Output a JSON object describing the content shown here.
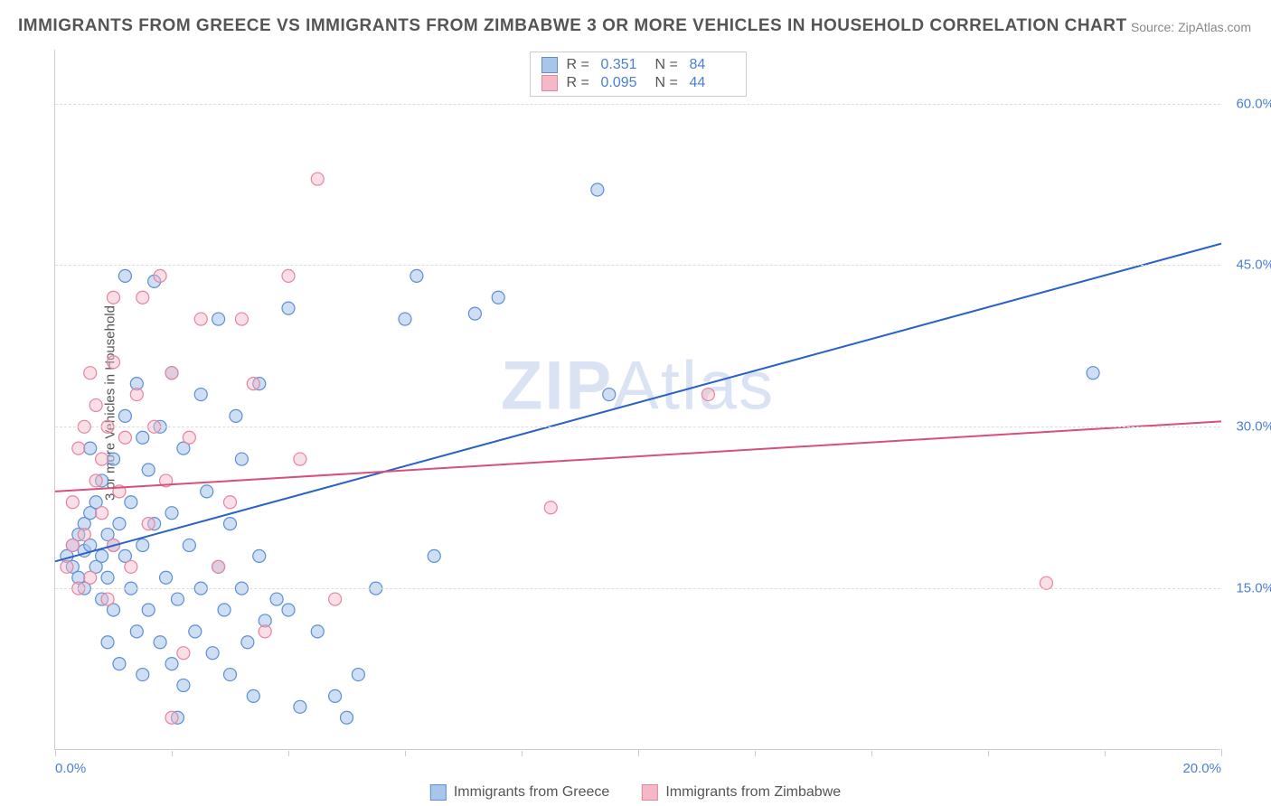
{
  "title": "IMMIGRANTS FROM GREECE VS IMMIGRANTS FROM ZIMBABWE 3 OR MORE VEHICLES IN HOUSEHOLD CORRELATION CHART",
  "source": "Source: ZipAtlas.com",
  "y_axis_label": "3 or more Vehicles in Household",
  "watermark": "ZIPAtlas",
  "chart": {
    "type": "scatter",
    "xlim": [
      0,
      20
    ],
    "ylim": [
      0,
      65
    ],
    "x_ticks": [
      0,
      10,
      20
    ],
    "x_tick_labels": [
      "0.0%",
      "",
      "20.0%"
    ],
    "x_minor_ticks": [
      2,
      4,
      6,
      8,
      12,
      14,
      16,
      18
    ],
    "y_gridlines": [
      15,
      30,
      45,
      60
    ],
    "y_tick_labels": [
      "15.0%",
      "30.0%",
      "45.0%",
      "60.0%"
    ],
    "grid_color": "#dddddd",
    "axis_color": "#cccccc",
    "background_color": "#ffffff",
    "marker_radius": 7,
    "marker_stroke_width": 1.2,
    "line_width": 2
  },
  "series": [
    {
      "name": "Immigrants from Greece",
      "fill": "#a8c5ea",
      "stroke": "#5c8fd6",
      "fill_opacity": 0.55,
      "line_color": "#2a62c9",
      "R": "0.351",
      "N": "84",
      "trend": {
        "x1": 0,
        "y1": 17.5,
        "x2": 20,
        "y2": 47
      },
      "points": [
        [
          0.2,
          18
        ],
        [
          0.3,
          17
        ],
        [
          0.3,
          19
        ],
        [
          0.4,
          20
        ],
        [
          0.4,
          16
        ],
        [
          0.5,
          18.5
        ],
        [
          0.5,
          21
        ],
        [
          0.5,
          15
        ],
        [
          0.6,
          19
        ],
        [
          0.6,
          22
        ],
        [
          0.7,
          17
        ],
        [
          0.7,
          23
        ],
        [
          0.8,
          18
        ],
        [
          0.8,
          14
        ],
        [
          0.8,
          25
        ],
        [
          0.9,
          20
        ],
        [
          0.9,
          16
        ],
        [
          1.0,
          19
        ],
        [
          1.0,
          27
        ],
        [
          1.0,
          13
        ],
        [
          1.1,
          21
        ],
        [
          1.1,
          8
        ],
        [
          1.2,
          18
        ],
        [
          1.2,
          31
        ],
        [
          1.3,
          15
        ],
        [
          1.3,
          23
        ],
        [
          1.4,
          11
        ],
        [
          1.4,
          34
        ],
        [
          1.5,
          19
        ],
        [
          1.5,
          7
        ],
        [
          1.6,
          26
        ],
        [
          1.6,
          13
        ],
        [
          1.7,
          21
        ],
        [
          1.7,
          43.5
        ],
        [
          1.8,
          10
        ],
        [
          1.8,
          30
        ],
        [
          1.9,
          16
        ],
        [
          2.0,
          22
        ],
        [
          2.0,
          8
        ],
        [
          2.0,
          35
        ],
        [
          2.1,
          14
        ],
        [
          2.2,
          28
        ],
        [
          2.2,
          6
        ],
        [
          2.3,
          19
        ],
        [
          2.4,
          11
        ],
        [
          2.5,
          33
        ],
        [
          2.5,
          15
        ],
        [
          2.6,
          24
        ],
        [
          2.7,
          9
        ],
        [
          2.8,
          40
        ],
        [
          2.9,
          13
        ],
        [
          3.0,
          21
        ],
        [
          3.0,
          7
        ],
        [
          3.1,
          31
        ],
        [
          3.2,
          15
        ],
        [
          3.3,
          10
        ],
        [
          3.4,
          5
        ],
        [
          3.5,
          18
        ],
        [
          3.6,
          12
        ],
        [
          3.8,
          14
        ],
        [
          4.0,
          13
        ],
        [
          4.2,
          4
        ],
        [
          4.5,
          11
        ],
        [
          4.8,
          5
        ],
        [
          5.0,
          3
        ],
        [
          5.2,
          7
        ],
        [
          5.5,
          15
        ],
        [
          3.5,
          34
        ],
        [
          4.0,
          41
        ],
        [
          6.0,
          40
        ],
        [
          6.2,
          44
        ],
        [
          6.5,
          18
        ],
        [
          7.2,
          40.5
        ],
        [
          7.6,
          42
        ],
        [
          9.3,
          52
        ],
        [
          9.5,
          33
        ],
        [
          17.8,
          35
        ],
        [
          1.2,
          44
        ],
        [
          2.8,
          17
        ],
        [
          3.2,
          27
        ],
        [
          0.9,
          10
        ],
        [
          1.5,
          29
        ],
        [
          0.6,
          28
        ],
        [
          2.1,
          3
        ]
      ]
    },
    {
      "name": "Immigrants from Zimbabwe",
      "fill": "#f5b8c7",
      "stroke": "#e584a0",
      "fill_opacity": 0.45,
      "line_color": "#d94f7a",
      "R": "0.095",
      "N": "44",
      "trend": {
        "x1": 0,
        "y1": 24,
        "x2": 20,
        "y2": 30.5
      },
      "points": [
        [
          0.2,
          17
        ],
        [
          0.3,
          19
        ],
        [
          0.3,
          23
        ],
        [
          0.4,
          28
        ],
        [
          0.4,
          15
        ],
        [
          0.5,
          30
        ],
        [
          0.5,
          20
        ],
        [
          0.6,
          35
        ],
        [
          0.6,
          16
        ],
        [
          0.7,
          25
        ],
        [
          0.7,
          32
        ],
        [
          0.8,
          22
        ],
        [
          0.8,
          27
        ],
        [
          0.9,
          30
        ],
        [
          0.9,
          14
        ],
        [
          1.0,
          36
        ],
        [
          1.0,
          19
        ],
        [
          1.1,
          24
        ],
        [
          1.2,
          29
        ],
        [
          1.3,
          17
        ],
        [
          1.4,
          33
        ],
        [
          1.5,
          42
        ],
        [
          1.6,
          21
        ],
        [
          1.7,
          30
        ],
        [
          1.8,
          44
        ],
        [
          1.9,
          25
        ],
        [
          2.0,
          35
        ],
        [
          2.2,
          9
        ],
        [
          2.3,
          29
        ],
        [
          2.5,
          40
        ],
        [
          2.8,
          17
        ],
        [
          3.0,
          23
        ],
        [
          3.2,
          40
        ],
        [
          3.4,
          34
        ],
        [
          3.6,
          11
        ],
        [
          4.0,
          44
        ],
        [
          4.2,
          27
        ],
        [
          4.5,
          53
        ],
        [
          4.8,
          14
        ],
        [
          2.0,
          3
        ],
        [
          8.5,
          22.5
        ],
        [
          11.2,
          33
        ],
        [
          17.0,
          15.5
        ],
        [
          1.0,
          42
        ]
      ]
    }
  ],
  "stats_labels": {
    "R": "R =",
    "N": "N ="
  },
  "bottom_legend": [
    {
      "label": "Immigrants from Greece",
      "fill": "#a8c5ea",
      "stroke": "#5c8fd6"
    },
    {
      "label": "Immigrants from Zimbabwe",
      "fill": "#f5b8c7",
      "stroke": "#e584a0"
    }
  ]
}
